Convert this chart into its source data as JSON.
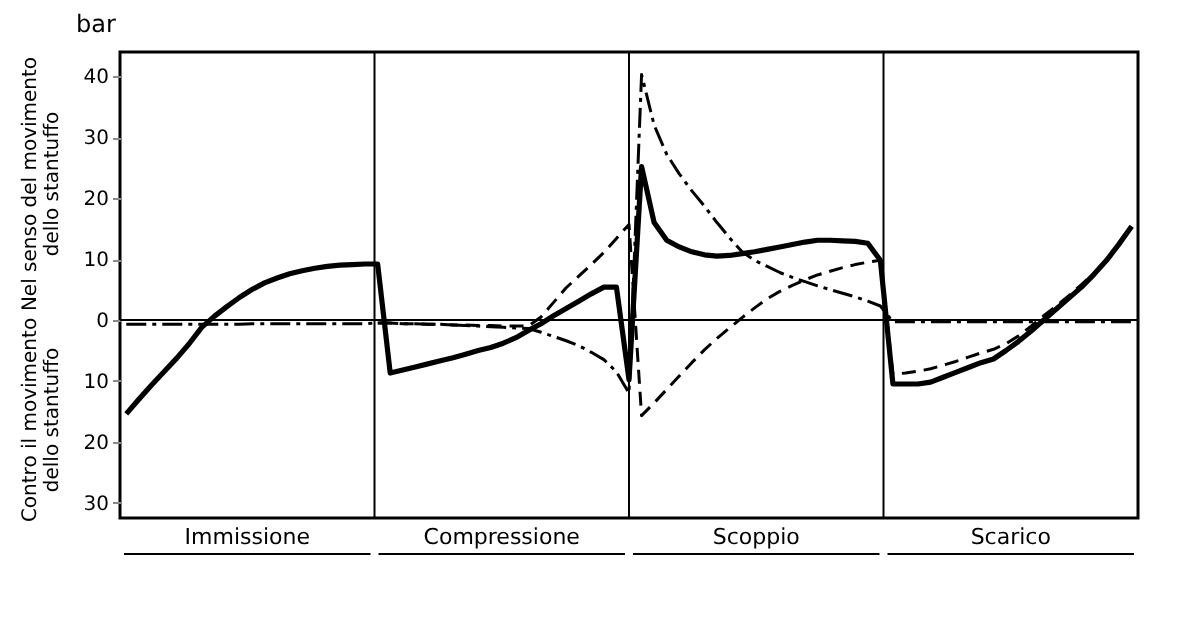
{
  "chart_data": {
    "type": "line",
    "ylabel": "bar",
    "annotations": [
      "Nel senso del movimento\ndello stantuffo",
      "Contro il movimento\ndello stantuffo",
      "Immissione",
      "Compressione",
      "Scoppio",
      "Scarico"
    ],
    "categories": [
      null,
      null,
      null,
      null,
      null,
      null,
      null,
      null,
      null,
      null,
      null,
      null,
      null,
      null,
      null,
      null,
      null,
      null,
      null,
      null,
      null,
      null,
      null,
      null,
      null,
      null,
      null,
      null,
      null,
      null,
      null,
      null,
      null,
      null,
      null,
      null,
      null,
      null,
      null,
      null,
      null,
      null,
      null,
      null,
      null,
      null,
      null,
      null,
      null,
      null,
      null,
      null,
      null,
      null,
      null,
      null,
      null,
      null,
      null,
      null,
      null,
      null,
      null,
      null,
      null,
      null,
      null,
      null,
      null,
      null,
      null,
      null,
      null,
      null,
      null,
      null,
      null,
      null,
      null,
      null,
      null
    ],
    "tick_labels": "y",
    "ylim": [
      -32.5,
      44
    ],
    "yticks": [
      40,
      30,
      20,
      10,
      0,
      {
        "value": -10,
        "label": "10"
      },
      {
        "value": -20,
        "label": "20"
      },
      {
        "value": -30,
        "label": "30"
      }
    ],
    "grid": false,
    "marker": "none",
    "ref_lines": [
      {
        "axis": "y",
        "value": 0,
        "color": "#000000"
      }
    ],
    "series": [
      {
        "color": "#000000",
        "line_style": "solid",
        "values": [
          -15.4,
          -13.0,
          -10.7,
          -8.5,
          -6.3,
          -3.9,
          -1.2,
          0.6,
          2.2,
          3.7,
          5.0,
          6.1,
          6.9,
          7.6,
          8.1,
          8.5,
          8.8,
          9.0,
          9.1,
          9.2,
          9.2,
          -8.7,
          -8.2,
          -7.7,
          -7.2,
          -6.7,
          -6.2,
          -5.6,
          -5.0,
          -4.5,
          -3.8,
          -2.9,
          -1.7,
          -0.6,
          0.7,
          1.9,
          3.1,
          4.3,
          5.4,
          5.4,
          -9.8,
          25.2,
          16.0,
          13.1,
          12.0,
          11.2,
          10.7,
          10.5,
          10.6,
          10.9,
          11.2,
          11.6,
          12.0,
          12.4,
          12.8,
          13.1,
          13.1,
          13.0,
          12.9,
          12.6,
          9.8,
          -10.5,
          -10.5,
          -10.5,
          -10.2,
          -9.4,
          -8.6,
          -7.8,
          -7.0,
          -6.4,
          -5.0,
          -3.5,
          -1.8,
          0.0,
          1.8,
          3.6,
          5.4,
          7.5,
          9.8,
          12.5,
          15.4
        ]
      },
      {
        "color": "#000000",
        "line_style": "dashed",
        "values": [
          null,
          null,
          null,
          null,
          null,
          null,
          null,
          null,
          null,
          null,
          null,
          null,
          null,
          null,
          null,
          null,
          null,
          null,
          null,
          null,
          -0.5,
          -0.5,
          -0.6,
          -0.6,
          -0.7,
          -0.7,
          -0.8,
          -0.8,
          -0.9,
          -0.9,
          -1.0,
          -1.0,
          -1.0,
          0.5,
          2.9,
          5.3,
          7.2,
          9.1,
          11.1,
          13.4,
          15.7,
          -15.7,
          -13.6,
          -11.4,
          -9.2,
          -7.0,
          -4.9,
          -3.0,
          -1.3,
          0.4,
          2.0,
          3.5,
          4.7,
          5.7,
          6.6,
          7.4,
          8.0,
          8.6,
          9.1,
          9.5,
          9.8,
          -8.9,
          -8.7,
          -8.4,
          -8.0,
          -7.4,
          -6.8,
          -6.1,
          -5.4,
          -4.8,
          -3.9,
          -2.6,
          -1.0,
          0.7,
          2.3,
          4.0,
          5.8,
          7.7,
          9.9,
          12.5,
          15.4
        ]
      },
      {
        "color": "#000000",
        "line_style": "dotted",
        "values": [
          -0.7,
          -0.7,
          -0.7,
          -0.7,
          -0.7,
          -0.7,
          -0.7,
          -0.7,
          -0.7,
          -0.7,
          -0.6,
          -0.6,
          -0.6,
          -0.6,
          -0.6,
          -0.6,
          -0.6,
          -0.6,
          -0.6,
          -0.6,
          -0.5,
          -0.5,
          -0.6,
          -0.6,
          -0.7,
          -0.7,
          -0.8,
          -0.9,
          -1.0,
          -1.1,
          -1.2,
          -1.3,
          -1.4,
          -2.0,
          -2.7,
          -3.4,
          -4.2,
          -5.3,
          -6.5,
          -8.5,
          -12.0,
          40.3,
          32.0,
          27.2,
          24.0,
          21.2,
          18.7,
          16.0,
          13.5,
          11.2,
          9.8,
          8.8,
          7.8,
          7.0,
          6.3,
          5.6,
          5.0,
          4.4,
          3.8,
          3.1,
          2.3,
          -0.3,
          -0.3,
          -0.3,
          -0.3,
          -0.3,
          -0.3,
          -0.3,
          -0.3,
          -0.3,
          -0.3,
          -0.3,
          -0.3,
          -0.3,
          -0.3,
          -0.3,
          -0.3,
          -0.3,
          -0.3,
          -0.3,
          -0.3
        ]
      }
    ]
  }
}
